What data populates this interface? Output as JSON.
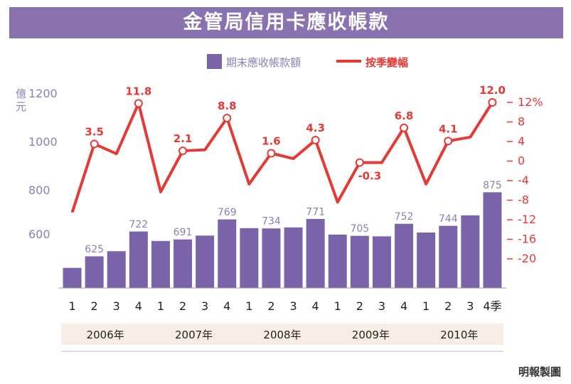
{
  "colors": {
    "title_bg": "#8a72b0",
    "bar": "#7b63aa",
    "line": "#e53935",
    "bar_label": "#8b7fb5",
    "year_bg": "#f7ede4"
  },
  "chart_data": {
    "type": "bar+line",
    "title": "金管局信用卡應收帳款",
    "categories": [
      "1",
      "2",
      "3",
      "4",
      "1",
      "2",
      "3",
      "4",
      "1",
      "2",
      "3",
      "4",
      "1",
      "2",
      "3",
      "4",
      "1",
      "2",
      "3",
      "4季"
    ],
    "years": [
      "2006年",
      "2007年",
      "2008年",
      "2009年",
      "2010年"
    ],
    "legend": {
      "bar": "期末應收帳款額",
      "line": "按季變幅",
      "placement": "top"
    },
    "y_left": {
      "label": "億元",
      "ticks": [
        "1200",
        "1000",
        "800",
        "600"
      ],
      "range": [
        500,
        1300
      ]
    },
    "y_right": {
      "ticks": [
        "12%",
        "8",
        "4",
        "0",
        "-4",
        "-8",
        "-12",
        "-16",
        "-20"
      ],
      "range": [
        -24,
        14
      ]
    },
    "series": [
      {
        "name": "期末應收帳款額",
        "type": "bar",
        "axis": "left",
        "values": [
          580,
          625,
          645,
          722,
          685,
          691,
          706,
          769,
          735,
          734,
          738,
          771,
          710,
          705,
          703,
          752,
          718,
          744,
          785,
          875
        ]
      },
      {
        "name": "按季變幅",
        "type": "line",
        "axis": "right",
        "values": [
          -10.5,
          3.5,
          1.5,
          11.8,
          -6.3,
          2.1,
          2.3,
          8.8,
          -4.7,
          1.6,
          0.5,
          4.3,
          -8.4,
          -0.3,
          -0.3,
          6.8,
          -4.7,
          4.1,
          4.9,
          12.0
        ]
      }
    ],
    "bar_data_labels": [
      null,
      "625",
      null,
      "722",
      null,
      "691",
      null,
      "769",
      null,
      "734",
      null,
      "771",
      null,
      "705",
      null,
      "752",
      null,
      "744",
      null,
      "875"
    ],
    "line_data_labels": [
      null,
      "3.5",
      null,
      "11.8",
      null,
      "2.1",
      null,
      "8.8",
      null,
      "1.6",
      null,
      "4.3",
      null,
      "-0.3",
      null,
      "6.8",
      null,
      "4.1",
      null,
      "12.0"
    ]
  },
  "footer": {
    "credit": "明報製圖"
  }
}
